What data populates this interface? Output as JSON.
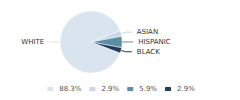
{
  "chart_data": {
    "type": "pie",
    "categories": [
      "WHITE",
      "ASIAN",
      "HISPANIC",
      "BLACK"
    ],
    "values": [
      88.3,
      2.9,
      5.9,
      2.9
    ],
    "value_labels": [
      "88.3%",
      "2.9%",
      "5.9%",
      "2.9%"
    ],
    "colors": [
      "#d9e4ee",
      "#c5d8e8",
      "#5b8fa8",
      "#1f3d5c"
    ],
    "legend": "bottom"
  }
}
